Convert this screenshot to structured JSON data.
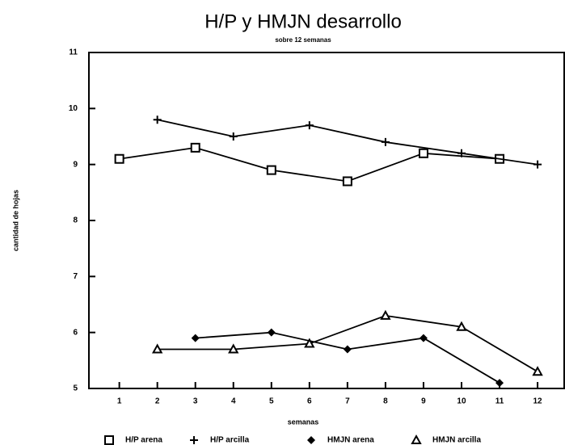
{
  "chart_data": {
    "type": "line",
    "title": "H/P y HMJN desarrollo",
    "subtitle": "sobre 12 semanas",
    "y_label": "cantidad de hojas",
    "x_label": "semanas",
    "xlim": [
      0.2,
      12.7
    ],
    "xticks": [
      1,
      2,
      3,
      4,
      5,
      6,
      7,
      8,
      9,
      10,
      11,
      12
    ],
    "ylim": [
      5,
      11
    ],
    "yticks": [
      5,
      6,
      7,
      8,
      9,
      10,
      11
    ],
    "legend": "bottom",
    "series": [
      {
        "name": "H/P arena",
        "color": "#000000",
        "marker": "square",
        "x": [
          1,
          3,
          5,
          7,
          9,
          11
        ],
        "values": [
          9.1,
          9.3,
          8.9,
          8.7,
          9.2,
          9.1
        ]
      },
      {
        "name": "H/P arcilla",
        "color": "#000000",
        "marker": "plus",
        "x": [
          2,
          4,
          6,
          8,
          10,
          12
        ],
        "values": [
          9.8,
          9.5,
          9.7,
          9.4,
          9.2,
          9.0
        ]
      },
      {
        "name": "HMJN arena",
        "color": "#000000",
        "marker": "diamond",
        "x": [
          3,
          5,
          7,
          9,
          11
        ],
        "values": [
          5.9,
          6.0,
          5.7,
          5.9,
          5.1
        ]
      },
      {
        "name": "HMJN arcilla",
        "color": "#000000",
        "marker": "triangle",
        "x": [
          2,
          4,
          6,
          8,
          10,
          12
        ],
        "values": [
          5.7,
          5.7,
          5.8,
          6.3,
          6.1,
          5.3
        ]
      }
    ]
  }
}
